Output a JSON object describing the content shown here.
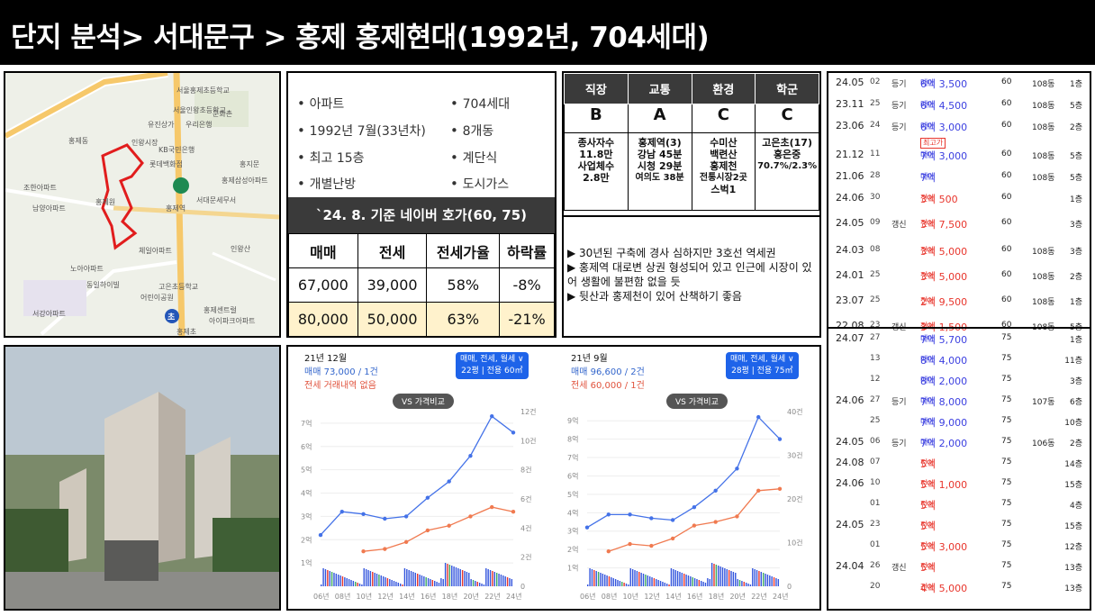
{
  "title": "단지 분석> 서대문구 > 홍제 홍제현대(1992년, 704세대)",
  "map": {
    "labels": [
      "KB국민은행",
      "서대문세무서",
      "롯데백화점",
      "홍제역",
      "우리은행",
      "인왕시장",
      "남양아파트",
      "홍제원",
      "체일아파트",
      "노아아파트",
      "동일하이빌",
      "서강아파트",
      "홍제센트럴",
      "아이파크아파트",
      "고은초등학교",
      "문화촌",
      "홍제삼성아파트",
      "조한아파트",
      "서울홍제초등학교",
      "서울인왕초등학교",
      "유진상가",
      "인왕산",
      "홍제동",
      "어린이공원",
      "홍제초",
      "홍지문"
    ],
    "subway_marker": "초"
  },
  "summary": {
    "items": [
      "아파트",
      "704세대",
      "1992년 7월(33년차)",
      "8개동",
      "최고 15층",
      "계단식",
      "개별난방",
      "도시가스"
    ],
    "price_header": "`24. 8. 기준 네이버 호가(60, 75)",
    "price_table": [
      [
        "매매",
        "전세",
        "전세가율",
        "하락률"
      ],
      [
        "67,000",
        "39,000",
        "58%",
        "-8%"
      ],
      [
        "80,000",
        "50,000",
        "63%",
        "-21%"
      ]
    ]
  },
  "grades": {
    "headers": [
      "직장",
      "교통",
      "환경",
      "학군"
    ],
    "ratings": [
      "B",
      "A",
      "C",
      "C"
    ],
    "details": [
      [
        "종사자수",
        "11.8만",
        "사업체수",
        "2.8만"
      ],
      [
        "홍제역(3)",
        "강남 45분",
        "시청 29분",
        "여의도 38분"
      ],
      [
        "수미산",
        "백련산",
        "홍제천",
        "전통시장2곳",
        "스벅1"
      ],
      [
        "고은초(17)",
        "홍은중",
        "70.7%/2.3%"
      ]
    ],
    "notes": [
      "▶ 30년된 구축에 경사 심하지만 3호선 역세권",
      "▶ 홍제역 대로변 상권 형성되어 있고 인근에 시장이 있어 생활에 불편함 없을 듯",
      "▶ 뒷산과 홍제천이 있어 산책하기 좋음"
    ]
  },
  "charts": [
    {
      "month": "21년 12월",
      "sale_line": "매매 73,000 / 1건",
      "rent_line": "전세 거래내역 없음",
      "badge_line1": "매매, 전세, 월세 ∨",
      "badge_line2": "22평 | 전용 60㎡",
      "vs_label": "VS 가격비교",
      "chart_data": {
        "type": "line",
        "x": [
          "06년",
          "08년",
          "10년",
          "12년",
          "14년",
          "16년",
          "18년",
          "20년",
          "22년",
          "24년"
        ],
        "left_ticks": [
          "7억",
          "6억",
          "5억",
          "4억",
          "3억",
          "2억",
          "1억"
        ],
        "right_ticks": [
          "12건",
          "10건",
          "8건",
          "6건",
          "4건",
          "2건",
          "0"
        ],
        "ylim": [
          0,
          7.5
        ],
        "series": [
          {
            "name": "매매",
            "color": "#4472e8",
            "values": [
              2.2,
              3.2,
              3.1,
              2.9,
              3.0,
              3.8,
              4.5,
              5.6,
              7.3,
              6.6
            ]
          },
          {
            "name": "전세",
            "color": "#f07a50",
            "values": [
              null,
              null,
              1.5,
              1.6,
              1.9,
              2.4,
              2.6,
              3.0,
              3.4,
              3.2
            ]
          }
        ],
        "volume_colors": [
          "#3355dd",
          "#e8352c",
          "#3aa860"
        ]
      }
    },
    {
      "month": "21년 9월",
      "sale_line": "매매 96,600 / 2건",
      "rent_line": "전세 60,000 / 1건",
      "badge_line1": "매매, 전세, 월세 ∨",
      "badge_line2": "28평 | 전용 75㎡",
      "vs_label": "VS 가격비교",
      "chart_data": {
        "type": "line",
        "x": [
          "06년",
          "08년",
          "10년",
          "12년",
          "14년",
          "16년",
          "18년",
          "20년",
          "22년",
          "24년"
        ],
        "left_ticks": [
          "9억",
          "8억",
          "7억",
          "6억",
          "5억",
          "4억",
          "3억",
          "2억",
          "1억"
        ],
        "right_ticks": [
          "40건",
          "30건",
          "20건",
          "10건",
          "0"
        ],
        "ylim": [
          0,
          9.5
        ],
        "series": [
          {
            "name": "매매",
            "color": "#4472e8",
            "values": [
              3.2,
              3.9,
              3.9,
              3.7,
              3.6,
              4.3,
              5.2,
              6.4,
              9.2,
              8.0
            ]
          },
          {
            "name": "전세",
            "color": "#f07a50",
            "values": [
              null,
              1.9,
              2.3,
              2.2,
              2.6,
              3.3,
              3.5,
              3.8,
              5.2,
              5.3
            ]
          }
        ],
        "volume_colors": [
          "#3355dd",
          "#e8352c",
          "#3aa860"
        ]
      }
    }
  ],
  "transactions_60": [
    {
      "ym": "24.05",
      "d": "02",
      "reg": "등기",
      "type": "매매",
      "price": "6억 3,500",
      "area": "60",
      "dong": "108동",
      "fl": "1층"
    },
    {
      "ym": "23.11",
      "d": "25",
      "reg": "등기",
      "type": "매매",
      "price": "6억 4,500",
      "area": "60",
      "dong": "108동",
      "fl": "5층"
    },
    {
      "ym": "23.06",
      "d": "24",
      "reg": "등기",
      "type": "매매",
      "price": "6억 3,000",
      "area": "60",
      "dong": "108동",
      "fl": "2층"
    },
    {
      "ym": "21.12",
      "d": "11",
      "reg": "",
      "type": "매매",
      "price": "7억 3,000",
      "area": "60",
      "dong": "108동",
      "fl": "5층",
      "badge": "최고가"
    },
    {
      "ym": "21.06",
      "d": "28",
      "reg": "",
      "type": "매매",
      "price": "7억",
      "area": "60",
      "dong": "108동",
      "fl": "5층"
    },
    {
      "ym": "24.06",
      "d": "30",
      "reg": "",
      "type": "전세",
      "price": "3억 500",
      "area": "60",
      "dong": "",
      "fl": "1층"
    },
    {
      "ym": "24.05",
      "d": "09",
      "reg": "갱신",
      "type": "전세",
      "price": "3억 7,500",
      "area": "60",
      "dong": "",
      "fl": "3층"
    },
    {
      "ym": "24.03",
      "d": "08",
      "reg": "",
      "type": "전세",
      "price": "3억 5,000",
      "area": "60",
      "dong": "108동",
      "fl": "3층"
    },
    {
      "ym": "24.01",
      "d": "25",
      "reg": "",
      "type": "전세",
      "price": "3억 5,000",
      "area": "60",
      "dong": "108동",
      "fl": "2층"
    },
    {
      "ym": "23.07",
      "d": "25",
      "reg": "",
      "type": "전세",
      "price": "2억 9,500",
      "area": "60",
      "dong": "108동",
      "fl": "1층"
    },
    {
      "ym": "22.08",
      "d": "23",
      "reg": "갱신",
      "type": "전세",
      "price": "3억 1,500",
      "area": "60",
      "dong": "108동",
      "fl": "5층"
    }
  ],
  "transactions_75": [
    {
      "ym": "24.07",
      "d": "27",
      "reg": "",
      "type": "매매",
      "price": "7억 5,700",
      "area": "75",
      "dong": "",
      "fl": "1층"
    },
    {
      "ym": "",
      "d": "13",
      "reg": "",
      "type": "매매",
      "price": "8억 4,000",
      "area": "75",
      "dong": "",
      "fl": "11층"
    },
    {
      "ym": "",
      "d": "12",
      "reg": "",
      "type": "매매",
      "price": "8억 2,000",
      "area": "75",
      "dong": "",
      "fl": "3층"
    },
    {
      "ym": "24.06",
      "d": "27",
      "reg": "등기",
      "type": "매매",
      "price": "7억 8,000",
      "area": "75",
      "dong": "107동",
      "fl": "6층"
    },
    {
      "ym": "",
      "d": "25",
      "reg": "",
      "type": "매매",
      "price": "7억 9,000",
      "area": "75",
      "dong": "",
      "fl": "10층"
    },
    {
      "ym": "24.05",
      "d": "06",
      "reg": "등기",
      "type": "매매",
      "price": "7억 2,000",
      "area": "75",
      "dong": "106동",
      "fl": "2층"
    },
    {
      "ym": "24.08",
      "d": "07",
      "reg": "",
      "type": "전세",
      "price": "5억",
      "area": "75",
      "dong": "",
      "fl": "14층"
    },
    {
      "ym": "24.06",
      "d": "10",
      "reg": "",
      "type": "전세",
      "price": "5억 1,000",
      "area": "75",
      "dong": "",
      "fl": "15층"
    },
    {
      "ym": "",
      "d": "01",
      "reg": "",
      "type": "전세",
      "price": "5억",
      "area": "75",
      "dong": "",
      "fl": "4층"
    },
    {
      "ym": "24.05",
      "d": "23",
      "reg": "",
      "type": "전세",
      "price": "5억",
      "area": "75",
      "dong": "",
      "fl": "15층"
    },
    {
      "ym": "",
      "d": "01",
      "reg": "",
      "type": "전세",
      "price": "5억 3,000",
      "area": "75",
      "dong": "",
      "fl": "12층"
    },
    {
      "ym": "24.04",
      "d": "26",
      "reg": "갱신",
      "type": "전세",
      "price": "5억",
      "area": "75",
      "dong": "",
      "fl": "13층"
    },
    {
      "ym": "",
      "d": "20",
      "reg": "",
      "type": "전세",
      "price": "4억 5,000",
      "area": "75",
      "dong": "",
      "fl": "13층"
    }
  ]
}
